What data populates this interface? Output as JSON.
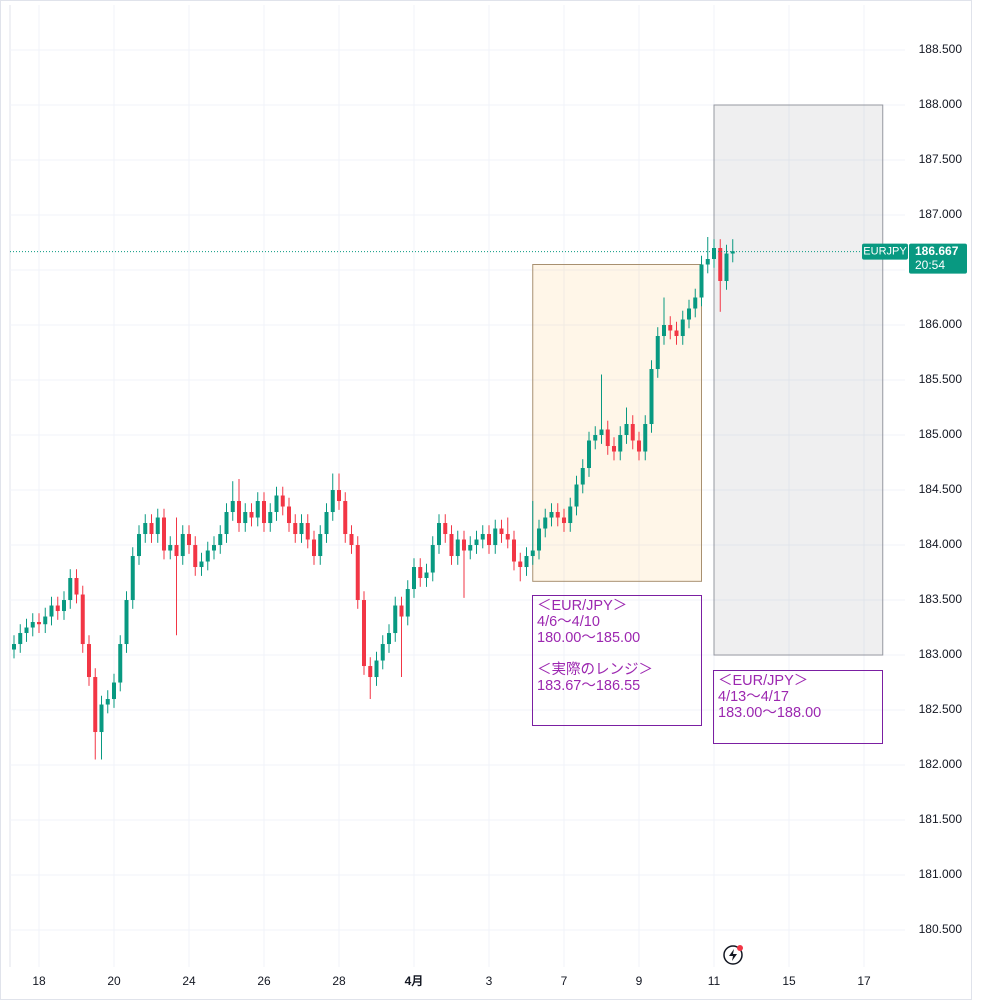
{
  "chart_data": {
    "type": "candlestick",
    "symbol": "EURJPY",
    "last_price": {
      "value": 186.667,
      "label": "186.667"
    },
    "countdown": "20:54",
    "up_color": "#089981",
    "down_color": "#f23645",
    "grid": true,
    "ylim": [
      180.164,
      188.909
    ],
    "yticks": [
      {
        "value": 180.5,
        "label": "180.500"
      },
      {
        "value": 181,
        "label": "181.000"
      },
      {
        "value": 181.5,
        "label": "181.500"
      },
      {
        "value": 182,
        "label": "182.000"
      },
      {
        "value": 182.5,
        "label": "182.500"
      },
      {
        "value": 183,
        "label": "183.000"
      },
      {
        "value": 183.5,
        "label": "183.500"
      },
      {
        "value": 184,
        "label": "184.000"
      },
      {
        "value": 184.5,
        "label": "184.500"
      },
      {
        "value": 185,
        "label": "185.000"
      },
      {
        "value": 185.5,
        "label": "185.500"
      },
      {
        "value": 186,
        "label": "186.000"
      },
      {
        "value": 186.5,
        "label": "186.500"
      },
      {
        "value": 187,
        "label": "187.000"
      },
      {
        "value": 187.5,
        "label": "187.500"
      },
      {
        "value": 188,
        "label": "188.000"
      },
      {
        "value": 188.5,
        "label": "188.500"
      }
    ],
    "categories": [
      null,
      null,
      null,
      null,
      "18",
      null,
      null,
      null,
      null,
      null,
      null,
      null,
      null,
      null,
      null,
      null,
      "20",
      null,
      null,
      null,
      null,
      null,
      null,
      null,
      null,
      null,
      null,
      null,
      "24",
      null,
      null,
      null,
      null,
      null,
      null,
      null,
      null,
      null,
      null,
      null,
      "26",
      null,
      null,
      null,
      null,
      null,
      null,
      null,
      null,
      null,
      null,
      null,
      "28",
      null,
      null,
      null,
      null,
      null,
      null,
      null,
      null,
      null,
      null,
      null,
      "4月",
      null,
      null,
      null,
      null,
      null,
      null,
      null,
      null,
      null,
      null,
      null,
      "3",
      null,
      null,
      null,
      null,
      null,
      null,
      null,
      null,
      null,
      null,
      null,
      "7",
      null,
      null,
      null,
      null,
      null,
      null,
      null,
      null,
      null,
      null,
      null,
      "9",
      null,
      null,
      null,
      null,
      null,
      null,
      null,
      null,
      null,
      null,
      null,
      "11",
      null,
      null,
      null,
      null,
      null,
      null,
      null,
      null,
      null,
      null,
      null,
      "15",
      null,
      null,
      null,
      null,
      null,
      null,
      null,
      null,
      null,
      null,
      null,
      "17",
      null,
      null,
      null,
      null,
      null
    ],
    "open": [
      183.05,
      183.1,
      183.2,
      183.25,
      183.3,
      183.28,
      183.35,
      183.45,
      183.4,
      183.5,
      183.7,
      183.55,
      183.1,
      182.8,
      182.3,
      182.55,
      182.6,
      182.75,
      183.1,
      183.5,
      183.9,
      184.1,
      184.2,
      184.1,
      184.25,
      183.95,
      184.0,
      183.9,
      184.1,
      184.0,
      183.8,
      183.85,
      183.95,
      184.0,
      184.1,
      184.3,
      184.4,
      184.2,
      184.3,
      184.25,
      184.4,
      184.2,
      184.3,
      184.45,
      184.35,
      184.2,
      184.1,
      184.2,
      184.05,
      183.9,
      184.1,
      184.3,
      184.5,
      184.4,
      184.1,
      184.0,
      183.5,
      182.9,
      182.8,
      182.95,
      183.1,
      183.2,
      183.45,
      183.35,
      183.6,
      183.8,
      183.7,
      183.75,
      184.0,
      184.2,
      184.1,
      183.9,
      184.05,
      183.95,
      184.0,
      184.05,
      184.1,
      184.0,
      184.15,
      184.1,
      184.05,
      183.85,
      183.8,
      183.9,
      183.95,
      184.15,
      184.25,
      184.3,
      184.25,
      184.2,
      184.35,
      184.55,
      184.7,
      184.95,
      185.0,
      185.05,
      184.9,
      184.85,
      185.0,
      185.1,
      184.95,
      184.85,
      185.1,
      185.6,
      185.9,
      186.0,
      185.95,
      185.9,
      186.05,
      186.15,
      186.25,
      186.55,
      186.6,
      186.7,
      186.4,
      186.65,
      null,
      null,
      null,
      null,
      null,
      null,
      null,
      null,
      null,
      null,
      null,
      null,
      null,
      null,
      null,
      null,
      null,
      null,
      null,
      null,
      null,
      null,
      null,
      null,
      null,
      null
    ],
    "high": [
      183.18,
      183.28,
      183.33,
      183.38,
      183.38,
      183.43,
      183.53,
      183.53,
      183.58,
      183.78,
      183.78,
      183.63,
      183.18,
      182.88,
      182.63,
      182.68,
      182.83,
      183.18,
      183.58,
      183.98,
      184.18,
      184.28,
      184.28,
      184.33,
      184.33,
      184.08,
      184.25,
      184.18,
      184.18,
      184.08,
      183.93,
      184.03,
      184.08,
      184.18,
      184.38,
      184.58,
      184.6,
      184.38,
      184.38,
      184.48,
      184.48,
      184.38,
      184.53,
      184.53,
      184.43,
      184.28,
      184.28,
      184.28,
      184.13,
      184.18,
      184.38,
      184.65,
      184.65,
      184.48,
      184.18,
      184.08,
      183.58,
      182.98,
      183.03,
      183.18,
      183.28,
      183.53,
      183.53,
      183.68,
      183.88,
      183.88,
      183.83,
      184.08,
      184.28,
      184.28,
      184.18,
      184.13,
      184.13,
      184.08,
      184.13,
      184.18,
      184.18,
      184.23,
      184.23,
      184.25,
      184.13,
      183.93,
      183.98,
      184.4,
      184.23,
      184.33,
      184.38,
      184.38,
      184.33,
      184.43,
      184.63,
      184.78,
      185.03,
      185.08,
      185.55,
      185.13,
      184.98,
      185.08,
      185.25,
      185.18,
      185.03,
      185.18,
      185.68,
      185.98,
      186.25,
      186.08,
      186.03,
      186.13,
      186.23,
      186.33,
      186.63,
      186.8,
      186.78,
      186.78,
      186.73,
      186.78,
      null,
      null,
      null,
      null,
      null,
      null,
      null,
      null,
      null,
      null,
      null,
      null,
      null,
      null,
      null,
      null,
      null,
      null,
      null,
      null,
      null,
      null,
      null,
      null,
      null,
      null
    ],
    "low": [
      182.97,
      183.02,
      183.12,
      183.17,
      183.2,
      183.2,
      183.27,
      183.32,
      183.32,
      183.42,
      183.47,
      183.02,
      182.72,
      182.05,
      182.05,
      182.47,
      182.52,
      182.67,
      183.02,
      183.42,
      183.82,
      184.02,
      184.02,
      184.02,
      183.87,
      183.87,
      183.18,
      183.82,
      183.92,
      183.72,
      183.72,
      183.77,
      183.87,
      183.92,
      184.02,
      184.22,
      184.12,
      184.12,
      184.17,
      184.17,
      184.12,
      184.12,
      184.22,
      184.27,
      184.12,
      184.02,
      184.02,
      183.97,
      183.82,
      183.82,
      184.02,
      184.22,
      184.32,
      184.02,
      183.92,
      183.42,
      182.82,
      182.6,
      182.72,
      182.87,
      183.02,
      183.12,
      182.8,
      183.27,
      183.52,
      183.62,
      183.62,
      183.67,
      183.92,
      184.02,
      183.82,
      183.82,
      183.52,
      183.87,
      183.92,
      183.97,
      183.92,
      183.92,
      184.02,
      183.97,
      183.77,
      183.67,
      183.72,
      183.82,
      183.87,
      184.07,
      184.17,
      184.17,
      184.12,
      184.12,
      184.27,
      184.47,
      184.62,
      184.87,
      184.92,
      184.82,
      184.77,
      184.77,
      184.92,
      184.87,
      184.77,
      184.77,
      185.02,
      185.52,
      185.82,
      185.87,
      185.82,
      185.82,
      185.97,
      186.07,
      186.17,
      186.47,
      186.52,
      186.12,
      186.32,
      186.57,
      null,
      null,
      null,
      null,
      null,
      null,
      null,
      null,
      null,
      null,
      null,
      null,
      null,
      null,
      null,
      null,
      null,
      null,
      null,
      null,
      null,
      null,
      null,
      null,
      null,
      null
    ],
    "close": [
      183.1,
      183.2,
      183.25,
      183.3,
      183.28,
      183.35,
      183.45,
      183.4,
      183.5,
      183.7,
      183.55,
      183.1,
      182.8,
      182.3,
      182.55,
      182.6,
      182.75,
      183.1,
      183.5,
      183.9,
      184.1,
      184.2,
      184.1,
      184.25,
      183.95,
      184.0,
      183.9,
      184.1,
      184.0,
      183.8,
      183.85,
      183.95,
      184.0,
      184.1,
      184.3,
      184.4,
      184.2,
      184.3,
      184.25,
      184.4,
      184.2,
      184.3,
      184.45,
      184.35,
      184.2,
      184.1,
      184.2,
      184.05,
      183.9,
      184.1,
      184.3,
      184.5,
      184.4,
      184.1,
      184.0,
      183.5,
      182.9,
      182.8,
      182.95,
      183.1,
      183.2,
      183.45,
      183.35,
      183.6,
      183.8,
      183.7,
      183.75,
      184.0,
      184.2,
      184.1,
      183.9,
      184.05,
      183.95,
      184.0,
      184.05,
      184.1,
      184.0,
      184.15,
      184.1,
      184.05,
      183.85,
      183.8,
      183.9,
      183.95,
      184.15,
      184.25,
      184.3,
      184.25,
      184.2,
      184.35,
      184.55,
      184.7,
      184.95,
      185.0,
      185.05,
      184.9,
      184.85,
      185.0,
      185.1,
      184.95,
      184.85,
      185.1,
      185.6,
      185.9,
      186.0,
      185.95,
      185.9,
      186.05,
      186.15,
      186.25,
      186.55,
      186.6,
      186.7,
      186.4,
      186.65,
      186.67,
      null,
      null,
      null,
      null,
      null,
      null,
      null,
      null,
      null,
      null,
      null,
      null,
      null,
      null,
      null,
      null,
      null,
      null,
      null,
      null,
      null,
      null,
      null,
      null,
      null,
      null
    ],
    "boxes": [
      {
        "from": 83,
        "to": 110,
        "low": 183.67,
        "high": 186.55,
        "fill": "rgba(255,152,0,0.09)",
        "stroke": "#a89070"
      },
      {
        "from": 112,
        "to": 139,
        "low": 183.0,
        "high": 188.0,
        "fill": "rgba(120,123,134,0.12)",
        "stroke": "#9598a1"
      }
    ],
    "notes": [
      {
        "groups": [
          [
            "＜EUR/JPY＞",
            "4/6〜4/10",
            "180.00〜185.00"
          ],
          [
            "＜実際のレンジ＞",
            "183.67〜186.55"
          ]
        ]
      },
      {
        "groups": [
          [
            "＜EUR/JPY＞",
            "4/13〜4/17",
            "183.00〜188.00"
          ]
        ]
      }
    ]
  }
}
